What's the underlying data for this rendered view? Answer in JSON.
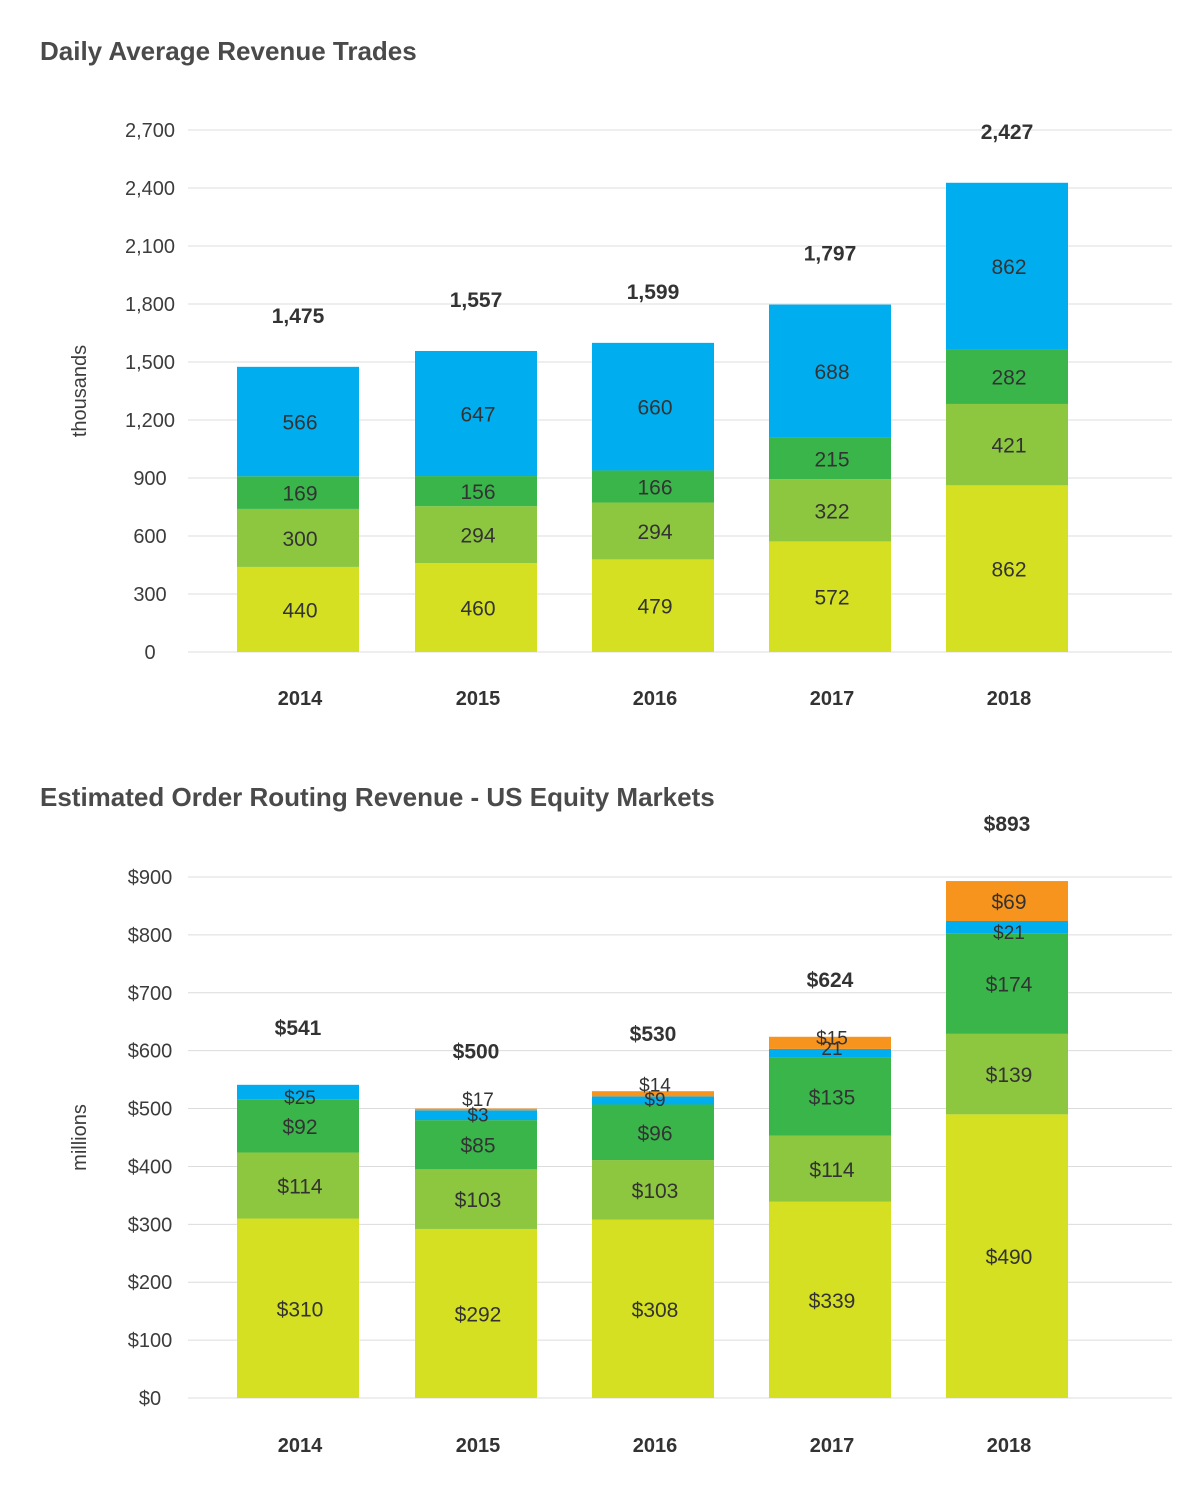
{
  "chart_data": [
    {
      "type": "bar",
      "stacked": true,
      "title": "Daily Average Revenue Trades",
      "xlabel": "",
      "ylabel": "thousands",
      "ylim": [
        0,
        2700
      ],
      "yticks": [
        0,
        300,
        600,
        900,
        1200,
        1500,
        1800,
        2100,
        2400,
        2700
      ],
      "ytick_labels": [
        "0",
        "300",
        "600",
        "900",
        "1,200",
        "1,500",
        "1,800",
        "2,100",
        "2,400",
        "2,700"
      ],
      "categories": [
        "2014",
        "2015",
        "2016",
        "2017",
        "2018"
      ],
      "grid": true,
      "legend": "none",
      "series": [
        {
          "color": "#d4e021",
          "values": [
            440,
            460,
            479,
            572,
            862
          ],
          "labels": [
            "440",
            "460",
            "479",
            "572",
            "862"
          ]
        },
        {
          "color": "#8dc63f",
          "values": [
            300,
            294,
            294,
            322,
            421
          ],
          "labels": [
            "300",
            "294",
            "294",
            "322",
            "421"
          ]
        },
        {
          "color": "#39b54a",
          "values": [
            169,
            156,
            166,
            215,
            282
          ],
          "labels": [
            "169",
            "156",
            "166",
            "215",
            "282"
          ]
        },
        {
          "color": "#00aeef",
          "values": [
            566,
            647,
            660,
            688,
            862
          ],
          "labels": [
            "566",
            "647",
            "660",
            "688",
            "862"
          ]
        }
      ],
      "totals": [
        1475,
        1557,
        1599,
        1797,
        2427
      ],
      "total_labels": [
        "1,475",
        "1,557",
        "1,599",
        "1,797",
        "2,427"
      ]
    },
    {
      "type": "bar",
      "stacked": true,
      "title": "Estimated Order Routing Revenue - US Equity Markets",
      "xlabel": "",
      "ylabel": "millions",
      "ylim": [
        0,
        900
      ],
      "yticks": [
        0,
        100,
        200,
        300,
        400,
        500,
        600,
        700,
        800,
        900
      ],
      "ytick_labels": [
        "$0",
        "$100",
        "$200",
        "$300",
        "$400",
        "$500",
        "$600",
        "$700",
        "$800",
        "$900"
      ],
      "categories": [
        "2014",
        "2015",
        "2016",
        "2017",
        "2018"
      ],
      "grid": true,
      "legend": "none",
      "series": [
        {
          "color": "#d4e021",
          "values": [
            310,
            292,
            308,
            339,
            490
          ],
          "labels": [
            "$310",
            "$292",
            "$308",
            "$339",
            "$490"
          ]
        },
        {
          "color": "#8dc63f",
          "values": [
            114,
            103,
            103,
            114,
            139
          ],
          "labels": [
            "$114",
            "$103",
            "$103",
            "$114",
            "$139"
          ]
        },
        {
          "color": "#39b54a",
          "values": [
            92,
            85,
            96,
            135,
            174
          ],
          "labels": [
            "$92",
            "$85",
            "$96",
            "$135",
            "$174"
          ]
        },
        {
          "color": "#00aeef",
          "values": [
            25,
            17,
            14,
            15,
            21
          ],
          "labels": [
            "$25",
            "$17",
            "$14",
            "$15",
            "$21"
          ]
        },
        {
          "color": "#f7941d",
          "values": [
            0,
            3,
            9,
            21,
            69
          ],
          "labels": [
            "",
            "$3",
            "$9",
            "21",
            "$69"
          ]
        }
      ],
      "totals": [
        541,
        500,
        530,
        624,
        893
      ],
      "total_labels": [
        "$541",
        "$500",
        "$530",
        "$624",
        "$893"
      ]
    }
  ]
}
